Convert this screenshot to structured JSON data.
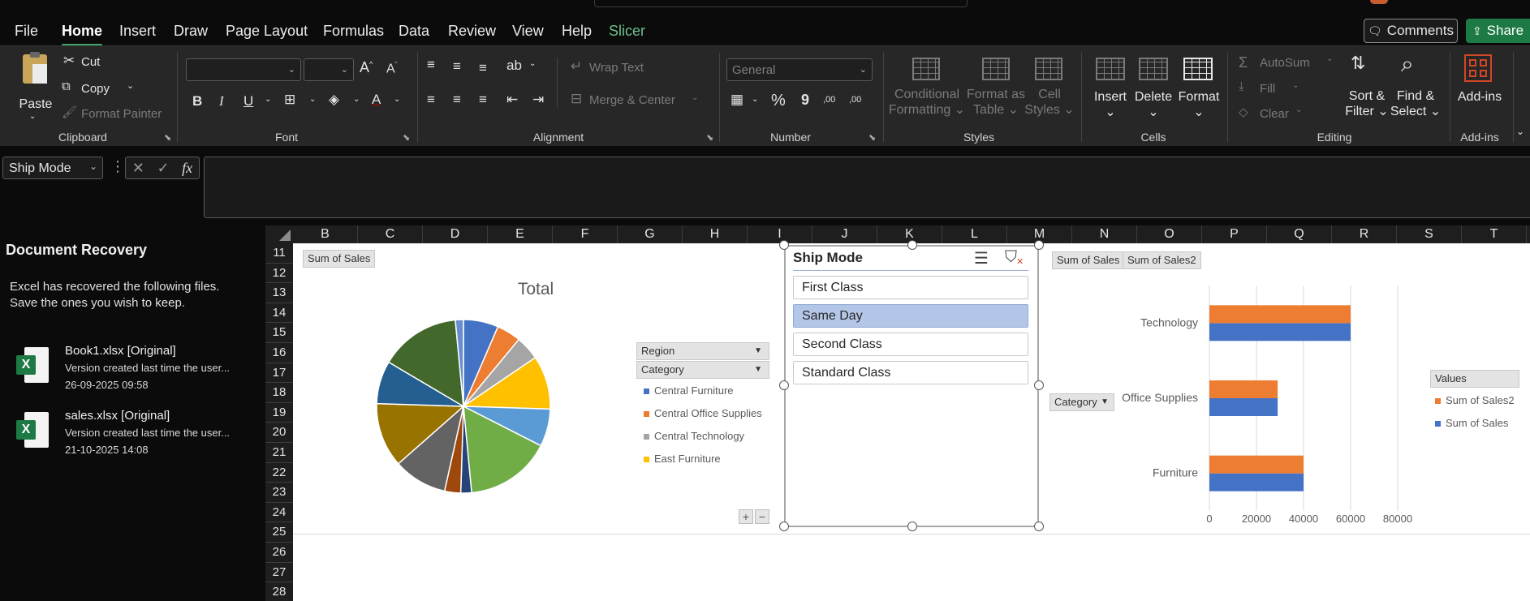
{
  "menu": {
    "items": [
      "File",
      "Home",
      "Insert",
      "Draw",
      "Page Layout",
      "Formulas",
      "Data",
      "Review",
      "View",
      "Help",
      "Slicer"
    ],
    "active": "Home",
    "comments_label": "Comments",
    "share_label": "Share"
  },
  "ribbon": {
    "clipboard": {
      "label": "Clipboard",
      "paste": "Paste",
      "cut": "Cut",
      "copy": "Copy",
      "format_painter": "Format Painter"
    },
    "font": {
      "label": "Font",
      "bold": "B",
      "italic": "I",
      "underline": "U"
    },
    "alignment": {
      "label": "Alignment",
      "wrap_text": "Wrap Text",
      "merge_center": "Merge & Center"
    },
    "number": {
      "label": "Number",
      "format": "General",
      "percent": "%",
      "comma": "9",
      "inc_dec": ",00",
      "dec_dec": ",00"
    },
    "styles": {
      "label": "Styles",
      "conditional_1": "Conditional",
      "conditional_2": "Formatting",
      "format_table_1": "Format as",
      "format_table_2": "Table",
      "cell_styles_1": "Cell",
      "cell_styles_2": "Styles"
    },
    "cells": {
      "label": "Cells",
      "insert": "Insert",
      "delete": "Delete",
      "format": "Format"
    },
    "editing": {
      "label": "Editing",
      "autosum": "AutoSum",
      "fill": "Fill",
      "clear": "Clear",
      "sort_1": "Sort &",
      "sort_2": "Filter",
      "find_1": "Find &",
      "find_2": "Select"
    },
    "addins": {
      "label": "Add-ins",
      "button": "Add-ins"
    }
  },
  "formula_bar": {
    "name_box": "Ship Mode",
    "fx": "fx",
    "value": ""
  },
  "recovery": {
    "title": "Document Recovery",
    "message_1": "Excel has recovered the following files.",
    "message_2": "Save the ones you wish to keep.",
    "files": [
      {
        "name": "Book1.xlsx  [Original]",
        "desc": "Version created last time the user...",
        "date": "26-09-2025 09:58"
      },
      {
        "name": "sales.xlsx  [Original]",
        "desc": "Version created last time the user...",
        "date": "21-10-2025 14:08"
      }
    ]
  },
  "sheet": {
    "columns": [
      "B",
      "C",
      "D",
      "E",
      "F",
      "G",
      "H",
      "I",
      "J",
      "K",
      "L",
      "M",
      "N",
      "O",
      "P",
      "Q",
      "R",
      "S",
      "T"
    ],
    "rows": [
      "11",
      "12",
      "13",
      "14",
      "15",
      "16",
      "17",
      "18",
      "19",
      "20",
      "21",
      "22",
      "23",
      "24",
      "25",
      "26",
      "27",
      "28"
    ]
  },
  "pie_chart": {
    "field_button": "Sum of Sales",
    "title": "Total",
    "region_button": "Region",
    "category_button": "Category",
    "legend": [
      {
        "label": "Central Furniture",
        "color": "#4472c4"
      },
      {
        "label": "Central Office Supplies",
        "color": "#ed7d31"
      },
      {
        "label": "Central Technology",
        "color": "#a5a5a5"
      },
      {
        "label": "East Furniture",
        "color": "#ffc000"
      }
    ],
    "plus": "+",
    "minus": "−"
  },
  "chart_data": [
    {
      "type": "pie",
      "title": "Total",
      "labels": [
        "Central Furniture",
        "Central Office Supplies",
        "Central Technology",
        "East Furniture",
        "",
        "",
        "",
        "",
        "",
        "",
        "",
        "",
        ""
      ],
      "values": [
        6.5,
        4.5,
        4.5,
        10,
        7,
        16,
        2,
        3,
        10,
        12,
        8,
        15,
        1.5
      ],
      "colors": [
        "#4472c4",
        "#ed7d31",
        "#a5a5a5",
        "#ffc000",
        "#5b9bd5",
        "#70ad47",
        "#264478",
        "#9e480e",
        "#636363",
        "#997300",
        "#255e91",
        "#43682b",
        "#698ed0"
      ]
    },
    {
      "type": "bar",
      "orientation": "horizontal",
      "categories": [
        "Furniture",
        "Office Supplies",
        "Technology"
      ],
      "series": [
        {
          "name": "Sum of Sales",
          "values": [
            40000,
            29000,
            60000
          ],
          "color": "#4472c4"
        },
        {
          "name": "Sum of Sales2",
          "values": [
            40000,
            29000,
            60000
          ],
          "color": "#ed7d31"
        }
      ],
      "xlim": [
        0,
        80000
      ],
      "xticks": [
        "0",
        "20000",
        "40000",
        "60000",
        "80000"
      ],
      "legend_title": "Values",
      "legend": "right",
      "grid": true
    }
  ],
  "bar_chart": {
    "field_button_1": "Sum of Sales",
    "field_button_2": "Sum of Sales2",
    "category_button": "Category",
    "legend_title": "Values"
  },
  "slicer": {
    "title": "Ship Mode",
    "items": [
      "First Class",
      "Same Day",
      "Second Class",
      "Standard Class"
    ],
    "selected": "Same Day"
  }
}
